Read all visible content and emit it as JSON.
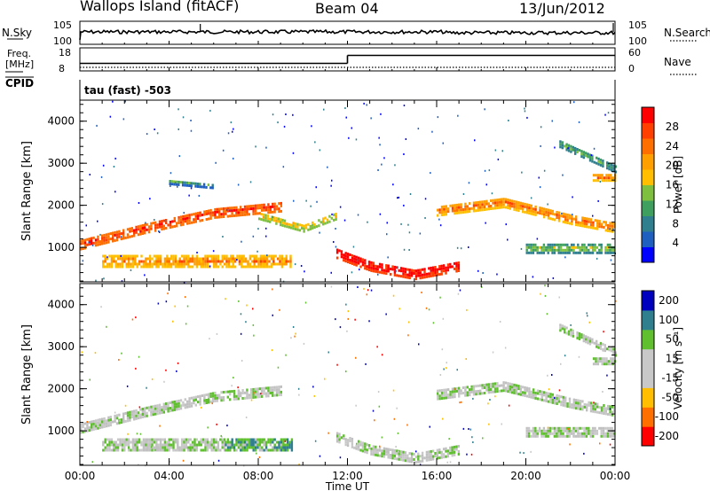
{
  "header": {
    "site": "Wallops Island (fitACF)",
    "beam": "Beam 04",
    "date": "13/Jun/2012"
  },
  "noise_panel": {
    "left_label": "N.Sky",
    "right_label": "N.Search",
    "left_ticks": [
      "10^5",
      "10^0"
    ],
    "right_ticks": [
      "10^5",
      "10^0"
    ]
  },
  "freq_panel": {
    "left_label_line1": "Freq.",
    "left_label_line2": "[MHz]",
    "left_ticks": [
      "18",
      "8"
    ],
    "right_label": "Nave",
    "right_ticks": [
      "60",
      "0"
    ],
    "freq_steps": [
      {
        "t0": 0,
        "t1": 12,
        "value": 10.5
      },
      {
        "t0": 12,
        "t1": 24,
        "value": 15.5
      }
    ]
  },
  "cpid": {
    "label": "CPID",
    "value": "tau (fast) -503"
  },
  "x_axis": {
    "title": "Time UT",
    "ticks": [
      "00:00",
      "04:00",
      "08:00",
      "12:00",
      "16:00",
      "20:00",
      "00:00"
    ]
  },
  "colors": {
    "power": [
      "#0000ff",
      "#1f5fbf",
      "#2f7f8f",
      "#3f9f5f",
      "#7fbf3f",
      "#ffbf00",
      "#ff9f00",
      "#ff6f00",
      "#ff3f00",
      "#ff0000"
    ],
    "velocity": [
      "#ff0000",
      "#ff6f00",
      "#ffbf00",
      "#c8c8c8",
      "#c8c8c8",
      "#5fbf2f",
      "#2f7f8f",
      "#0000bf"
    ],
    "ground_scatter": "#c0c0c0"
  },
  "chart_data": [
    {
      "type": "heatmap",
      "name": "power_panel",
      "ylabel": "Slant Range [km]",
      "y_ticks": [
        "1000",
        "2000",
        "3000",
        "4000"
      ],
      "ylim": [
        180,
        4500
      ],
      "xlim_hours": [
        0,
        24
      ],
      "colorbar_label": "Power [dB]",
      "colorbar_ticks": [
        "28",
        "24",
        "20",
        "16",
        "12",
        "8",
        "4"
      ],
      "colorbar_range": [
        0,
        32
      ],
      "bands": [
        {
          "t": [
            0,
            3,
            6,
            9
          ],
          "r": [
            1100,
            1500,
            1850,
            2000
          ],
          "width": 220,
          "level": 26
        },
        {
          "t": [
            8,
            10,
            11.5
          ],
          "r": [
            1800,
            1500,
            1800
          ],
          "width": 180,
          "level": 16
        },
        {
          "t": [
            1,
            4,
            8,
            9.5
          ],
          "r": [
            700,
            700,
            700,
            700
          ],
          "width": 260,
          "level": 20
        },
        {
          "t": [
            11.5,
            13,
            15,
            17
          ],
          "r": [
            900,
            600,
            400,
            600
          ],
          "width": 240,
          "level": 30
        },
        {
          "t": [
            16,
            19,
            22,
            24
          ],
          "r": [
            1900,
            2100,
            1700,
            1500
          ],
          "width": 220,
          "level": 22
        },
        {
          "t": [
            20,
            22,
            24
          ],
          "r": [
            1000,
            1000,
            1000
          ],
          "width": 200,
          "level": 12
        },
        {
          "t": [
            21.5,
            24
          ],
          "r": [
            3500,
            2900
          ],
          "width": 160,
          "level": 10
        },
        {
          "t": [
            23,
            24
          ],
          "r": [
            2700,
            2700
          ],
          "width": 160,
          "level": 22
        },
        {
          "t": [
            4,
            6
          ],
          "r": [
            2600,
            2500
          ],
          "width": 120,
          "level": 8
        }
      ]
    },
    {
      "type": "heatmap",
      "name": "velocity_panel",
      "ylabel": "Slant Range [km]",
      "y_ticks": [
        "1000",
        "2000",
        "3000",
        "4000"
      ],
      "ylim": [
        180,
        4500
      ],
      "xlim_hours": [
        0,
        24
      ],
      "colorbar_label": "Velocity [m s^-1]",
      "colorbar_ticks": [
        "200",
        "100",
        "50",
        "15",
        "-15",
        "-50",
        "-100",
        "-200"
      ],
      "colorbar_range": [
        -250,
        250
      ],
      "bands": [
        {
          "t": [
            0,
            3,
            6,
            9
          ],
          "r": [
            1100,
            1500,
            1850,
            2000
          ],
          "width": 220,
          "velocity": 0
        },
        {
          "t": [
            1,
            4,
            6.5
          ],
          "r": [
            700,
            700,
            700
          ],
          "width": 260,
          "velocity": 0
        },
        {
          "t": [
            6.5,
            8,
            9.5
          ],
          "r": [
            700,
            700,
            700
          ],
          "width": 260,
          "velocity": 40
        },
        {
          "t": [
            11.5,
            13,
            15,
            17
          ],
          "r": [
            900,
            600,
            400,
            600
          ],
          "width": 240,
          "velocity": 0
        },
        {
          "t": [
            16,
            19,
            22,
            24
          ],
          "r": [
            1900,
            2100,
            1700,
            1500
          ],
          "width": 220,
          "velocity": 0
        },
        {
          "t": [
            20,
            22,
            24
          ],
          "r": [
            1000,
            1000,
            1000
          ],
          "width": 200,
          "velocity": 0
        },
        {
          "t": [
            21.5,
            24
          ],
          "r": [
            3500,
            2900
          ],
          "width": 160,
          "velocity": 0
        },
        {
          "t": [
            23,
            24
          ],
          "r": [
            2700,
            2700
          ],
          "width": 160,
          "velocity": 0
        }
      ]
    }
  ]
}
